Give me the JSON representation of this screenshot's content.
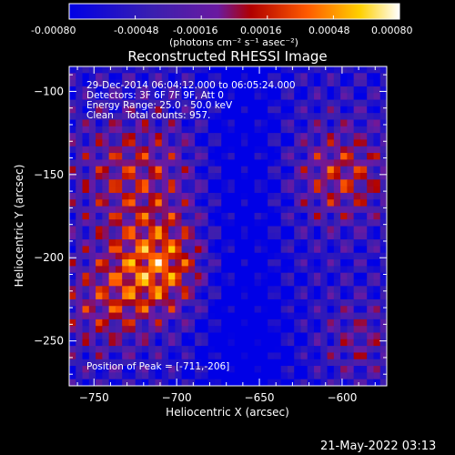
{
  "colorbar": {
    "ticks": [
      "-0.00080",
      "-0.00048",
      "-0.00016",
      "0.00016",
      "0.00048",
      "0.00080"
    ],
    "unit_label": "(photons cm⁻² s⁻¹ asec⁻²)"
  },
  "chart_data": {
    "type": "heatmap",
    "title": "Reconstructed RHESSI Image",
    "xlabel": "Heliocentric X (arcsec)",
    "ylabel": "Heliocentric Y (arcsec)",
    "xlim": [
      -765,
      -573
    ],
    "ylim": [
      -277,
      -85
    ],
    "x_ticks": [
      -750,
      -700,
      -650,
      -600
    ],
    "y_ticks": [
      -100,
      -150,
      -200,
      -250
    ],
    "x_tick_labels": [
      "−750",
      "−700",
      "−650",
      "−600"
    ],
    "y_tick_labels": [
      "−100",
      "−150",
      "−200",
      "−250"
    ],
    "color_scale": {
      "min": -0.0008,
      "max": 0.0008,
      "colormap": "blue-purple-red-yellow-white"
    },
    "annotations": [
      "29-Dec-2014 06:04:12.000 to 06:05:24.000",
      "Detectors: 3F 6F 7F 9F, Att 0",
      "Energy Range: 25.0 - 50.0 keV",
      "Clean    Total counts: 957."
    ],
    "peak_label": "Position of Peak = [-711,-206]",
    "peak": [
      -711,
      -206
    ]
  },
  "footer": {
    "timestamp": "21-May-2022 03:13"
  }
}
